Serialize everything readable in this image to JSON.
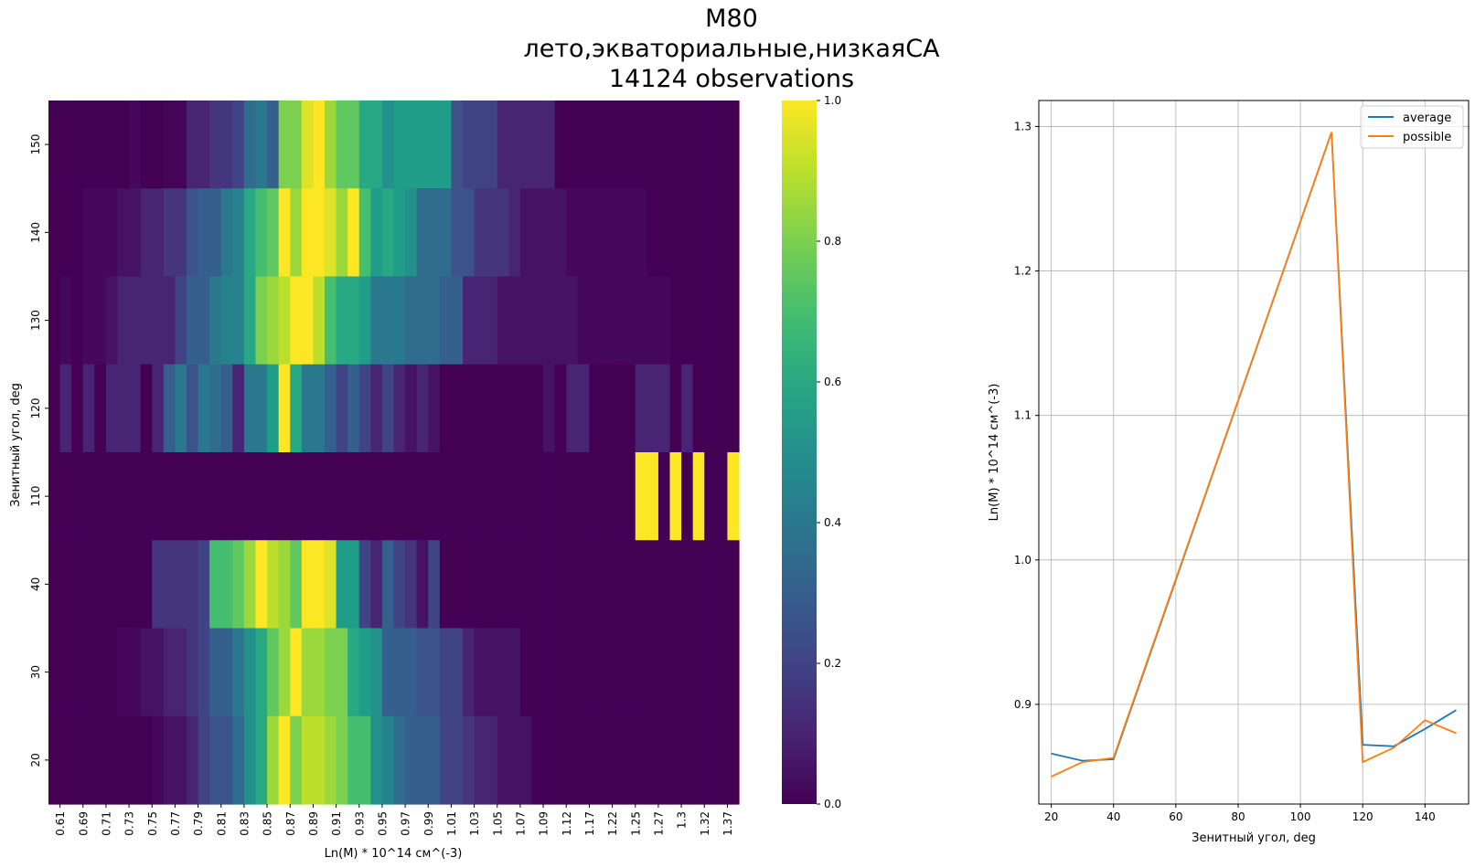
{
  "title": {
    "line1": "M80",
    "line2": "лето,экваториальные,низкаяСА",
    "line3": "14124 observations"
  },
  "chart_data": [
    {
      "type": "heatmap",
      "xlabel": "Ln(M) * 10^14 см^(-3)",
      "ylabel": "Зенитный угол, deg",
      "xticklabels": [
        "0.61",
        "0.69",
        "0.71",
        "0.73",
        "0.75",
        "0.77",
        "0.79",
        "0.81",
        "0.83",
        "0.85",
        "0.87",
        "0.89",
        "0.91",
        "0.93",
        "0.95",
        "0.97",
        "0.99",
        "1.01",
        "1.03",
        "1.05",
        "1.07",
        "1.09",
        "1.12",
        "1.17",
        "1.22",
        "1.25",
        "1.27",
        "1.3",
        "1.32",
        "1.37"
      ],
      "rows": [
        "150",
        "140",
        "130",
        "120",
        "110",
        "40",
        "30",
        "20"
      ],
      "colormap": "viridis",
      "colorbar": {
        "ticks": [
          "0.0",
          "0.2",
          "0.4",
          "0.6",
          "0.8",
          "1.0"
        ],
        "range": [
          0,
          1
        ]
      },
      "values": [
        [
          0,
          0,
          0,
          0,
          0,
          0,
          0,
          0.02,
          0,
          0,
          0.01,
          0.01,
          0.1,
          0.1,
          0.15,
          0.15,
          0.2,
          0.35,
          0.4,
          0.3,
          0.8,
          0.8,
          0.95,
          1.0,
          0.85,
          0.75,
          0.75,
          0.6,
          0.6,
          0.5,
          0.55,
          0.55,
          0.55,
          0.55,
          0.55,
          0.25,
          0.2,
          0.2,
          0.2,
          0.1,
          0.1,
          0.1,
          0.1,
          0.1,
          0,
          0,
          0,
          0,
          0,
          0,
          0,
          0,
          0,
          0,
          0,
          0,
          0,
          0,
          0,
          0
        ],
        [
          0,
          0,
          0,
          0.02,
          0.02,
          0.02,
          0.05,
          0.05,
          0.1,
          0.1,
          0.15,
          0.15,
          0.25,
          0.3,
          0.3,
          0.4,
          0.45,
          0.6,
          0.7,
          0.75,
          1.0,
          0.85,
          1.0,
          1.0,
          0.95,
          0.85,
          1.0,
          0.7,
          0.55,
          0.6,
          0.55,
          0.5,
          0.35,
          0.35,
          0.35,
          0.25,
          0.25,
          0.15,
          0.15,
          0.15,
          0.1,
          0.05,
          0.05,
          0.05,
          0.05,
          0.02,
          0.02,
          0.02,
          0.02,
          0.02,
          0.02,
          0.02,
          0,
          0,
          0,
          0,
          0,
          0,
          0,
          0
        ],
        [
          0,
          0.02,
          0,
          0.02,
          0.02,
          0.05,
          0.1,
          0.1,
          0.1,
          0.1,
          0.1,
          0.2,
          0.3,
          0.3,
          0.4,
          0.45,
          0.45,
          0.6,
          0.8,
          0.85,
          0.9,
          1.0,
          1.0,
          0.9,
          0.7,
          0.6,
          0.6,
          0.55,
          0.4,
          0.4,
          0.4,
          0.35,
          0.35,
          0.35,
          0.3,
          0.3,
          0.1,
          0.1,
          0.1,
          0.05,
          0.05,
          0.05,
          0.05,
          0.05,
          0.05,
          0.05,
          0.02,
          0.02,
          0.02,
          0.02,
          0.02,
          0.02,
          0.02,
          0.02,
          0,
          0,
          0,
          0,
          0,
          0
        ],
        [
          0,
          0.1,
          0,
          0.1,
          0,
          0.1,
          0.1,
          0.1,
          0,
          0.1,
          0.3,
          0.4,
          0.25,
          0.4,
          0.35,
          0.3,
          0.1,
          0.4,
          0.4,
          0.55,
          1.0,
          0.6,
          0.4,
          0.4,
          0.3,
          0.2,
          0.3,
          0.2,
          0.1,
          0.2,
          0.1,
          0.05,
          0.1,
          0.05,
          0,
          0,
          0,
          0,
          0,
          0,
          0,
          0,
          0,
          0.05,
          0,
          0.1,
          0.1,
          0,
          0,
          0,
          0,
          0.1,
          0.1,
          0.1,
          0,
          0.1,
          0,
          0,
          0,
          0
        ],
        [
          0,
          0,
          0,
          0,
          0,
          0,
          0,
          0,
          0,
          0,
          0,
          0,
          0,
          0,
          0,
          0,
          0,
          0,
          0,
          0,
          0,
          0,
          0,
          0,
          0,
          0,
          0,
          0,
          0,
          0,
          0,
          0,
          0,
          0,
          0,
          0,
          0,
          0,
          0,
          0,
          0,
          0,
          0,
          0,
          0,
          0,
          0,
          0,
          0,
          0,
          0,
          1.0,
          1.0,
          0,
          1.0,
          0,
          1.0,
          0,
          0,
          1.0
        ],
        [
          0,
          0,
          0,
          0,
          0,
          0,
          0,
          0,
          0,
          0.15,
          0.15,
          0.15,
          0.15,
          0.2,
          0.7,
          0.7,
          0.75,
          0.85,
          1.0,
          0.9,
          0.85,
          0.75,
          1.0,
          1.0,
          0.95,
          0.55,
          0.55,
          0.2,
          0.1,
          0.3,
          0.2,
          0.15,
          0.05,
          0.2,
          0,
          0,
          0,
          0,
          0,
          0,
          0,
          0,
          0,
          0,
          0,
          0,
          0,
          0,
          0,
          0,
          0,
          0,
          0,
          0,
          0,
          0,
          0,
          0,
          0,
          0
        ],
        [
          0,
          0,
          0,
          0,
          0,
          0,
          0.02,
          0.02,
          0.05,
          0.05,
          0.1,
          0.1,
          0.15,
          0.2,
          0.3,
          0.3,
          0.4,
          0.5,
          0.6,
          0.75,
          0.85,
          1.0,
          0.85,
          0.85,
          0.8,
          0.8,
          0.6,
          0.55,
          0.5,
          0.3,
          0.3,
          0.3,
          0.25,
          0.25,
          0.2,
          0.2,
          0.1,
          0.05,
          0.05,
          0.05,
          0.05,
          0,
          0,
          0,
          0,
          0,
          0,
          0,
          0,
          0,
          0,
          0,
          0,
          0,
          0,
          0,
          0,
          0,
          0,
          0
        ],
        [
          0,
          0,
          0,
          0,
          0,
          0,
          0,
          0,
          0,
          0.02,
          0.05,
          0.05,
          0.1,
          0.2,
          0.25,
          0.25,
          0.35,
          0.5,
          0.6,
          0.85,
          1.0,
          0.8,
          0.9,
          0.9,
          0.85,
          0.8,
          0.7,
          0.7,
          0.5,
          0.45,
          0.35,
          0.3,
          0.3,
          0.3,
          0.2,
          0.2,
          0.15,
          0.1,
          0.1,
          0.05,
          0.05,
          0.05,
          0,
          0,
          0,
          0,
          0,
          0,
          0,
          0,
          0,
          0,
          0,
          0,
          0,
          0,
          0,
          0,
          0,
          0
        ]
      ]
    },
    {
      "type": "line",
      "xlabel": "Зенитный угол, deg",
      "ylabel": "Ln(M) * 10^14 см^(-3)",
      "xlim": [
        16,
        154
      ],
      "ylim": [
        0.831,
        1.318
      ],
      "xticks": [
        20,
        40,
        60,
        80,
        100,
        120,
        140
      ],
      "yticks": [
        0.9,
        1.0,
        1.1,
        1.2,
        1.3
      ],
      "grid": true,
      "legend": "top-right",
      "x": [
        20,
        30,
        40,
        110,
        120,
        130,
        140,
        150
      ],
      "series": [
        {
          "name": "average",
          "color": "#1f77b4",
          "values": [
            0.866,
            0.861,
            0.862,
            1.296,
            0.872,
            0.871,
            0.883,
            0.896
          ]
        },
        {
          "name": "possible",
          "color": "#ff7f0e",
          "values": [
            0.85,
            0.86,
            0.863,
            1.296,
            0.86,
            0.87,
            0.889,
            0.88
          ]
        }
      ]
    }
  ]
}
